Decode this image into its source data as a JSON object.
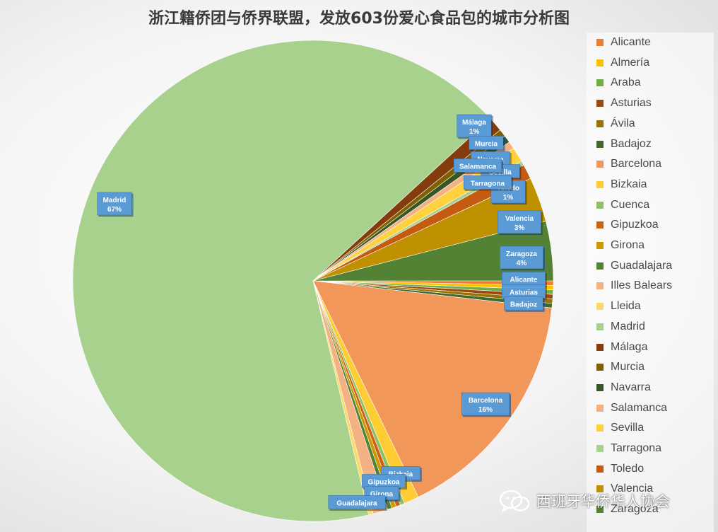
{
  "chart_data": {
    "type": "pie",
    "title": "浙江籍侨团与侨界联盟，发放603份爱心食品包的城市分析图",
    "legend_position": "right",
    "categories": [
      "Alicante",
      "Almería",
      "Araba",
      "Asturias",
      "Ávila",
      "Badajoz",
      "Barcelona",
      "Bizkaia",
      "Cuenca",
      "Gipuzkoa",
      "Girona",
      "Guadalajara",
      "Illes Balears",
      "Lleida",
      "Madrid",
      "Málaga",
      "Murcia",
      "Navarra",
      "Salamanca",
      "Sevilla",
      "Tarragona",
      "Toledo",
      "Valencia",
      "Zaragoza"
    ],
    "values": [
      0.3,
      0.3,
      0.3,
      0.3,
      0.3,
      0.3,
      16,
      1,
      0.3,
      0.3,
      0.3,
      0.3,
      1,
      0.3,
      67,
      1,
      0.5,
      0.5,
      0.5,
      1,
      0.3,
      1,
      3,
      4
    ],
    "colors": [
      "#ed7d31",
      "#ffc000",
      "#70ad47",
      "#9e480e",
      "#997300",
      "#43682b",
      "#f1975a",
      "#ffcd33",
      "#8cc168",
      "#d26012",
      "#cc9a00",
      "#548235",
      "#f4b183",
      "#ffd966",
      "#a9d18e",
      "#843c0c",
      "#7f6000",
      "#375623",
      "#f4b183",
      "#ffd13d",
      "#a9d18e",
      "#c55a11",
      "#bf9000",
      "#548235"
    ],
    "data_labels": [
      {
        "name": "Madrid",
        "pct": "67%"
      },
      {
        "name": "Barcelona",
        "pct": "16%"
      },
      {
        "name": "Zaragoza",
        "pct": "4%"
      },
      {
        "name": "Valencia",
        "pct": "3%"
      },
      {
        "name": "Toledo",
        "pct": "1%"
      },
      {
        "name": "Málaga",
        "pct": "1%"
      },
      {
        "name": "Murcia",
        "pct": ""
      },
      {
        "name": "Navarra",
        "pct": ""
      },
      {
        "name": "Sevilla",
        "pct": ""
      },
      {
        "name": "Salamanca",
        "pct": ""
      },
      {
        "name": "Tarragona",
        "pct": ""
      },
      {
        "name": "Alicante",
        "pct": ""
      },
      {
        "name": "Asturias",
        "pct": ""
      },
      {
        "name": "Badajoz",
        "pct": ""
      },
      {
        "name": "Bizkaia",
        "pct": ""
      },
      {
        "name": "Gipuzkoa",
        "pct": ""
      },
      {
        "name": "Girona",
        "pct": ""
      },
      {
        "name": "Guadalajara",
        "pct": ""
      }
    ]
  },
  "watermark": {
    "text": "西班牙华侨华人协会",
    "icon": "wechat-icon"
  }
}
